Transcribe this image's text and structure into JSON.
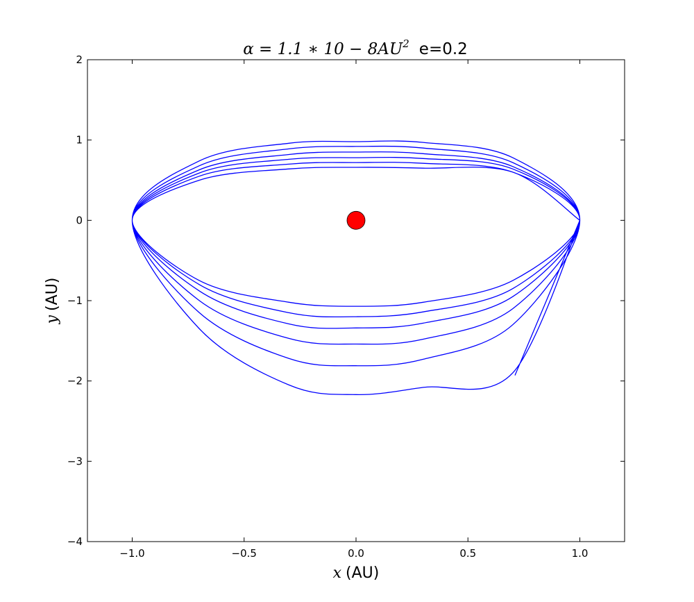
{
  "chart_data": {
    "type": "line",
    "title": {
      "math": "α = 1.1 ∗ 10 − 8AU",
      "math_sup": "2",
      "text": "e=0.2"
    },
    "xlabel": {
      "var": "x",
      "unit": "(AU)"
    },
    "ylabel": {
      "var": "y",
      "unit": "(AU)"
    },
    "xlim": [
      -1.2,
      1.2
    ],
    "ylim": [
      -4,
      2
    ],
    "xticks": [
      -1.0,
      -0.5,
      0.0,
      0.5,
      1.0
    ],
    "xtick_labels": [
      "−1.0",
      "−0.5",
      "0.0",
      "0.5",
      "1.0"
    ],
    "yticks": [
      2,
      1,
      0,
      -1,
      -2,
      -3,
      -4
    ],
    "ytick_labels": [
      "2",
      "1",
      "0",
      "−1",
      "−2",
      "−3",
      "−4"
    ],
    "grid": false,
    "series": [
      {
        "color": "#0000ff",
        "x": [
          1.0,
          0.7,
          0.3,
          0.0,
          -0.3,
          -0.7,
          -1.0,
          -0.7,
          -0.3,
          0.0,
          0.3,
          0.7,
          1.0,
          0.7,
          0.3,
          0.0,
          -0.3,
          -0.7,
          -1.0,
          -0.7,
          -0.3,
          0.0,
          0.3,
          0.7,
          1.0,
          0.7,
          0.3,
          0.0,
          -0.3,
          -0.7,
          -1.0,
          -0.7,
          -0.3,
          0.0,
          0.3,
          0.7,
          1.0,
          0.7,
          0.3,
          0.0,
          -0.3,
          -0.7,
          -1.0,
          -0.7,
          -0.3,
          0.0,
          0.3,
          0.7,
          1.0,
          0.7,
          0.3,
          0.0,
          -0.3,
          -0.7,
          -1.0,
          -0.7,
          -0.3,
          0.0,
          0.3,
          0.7,
          1.0,
          0.7,
          0.3,
          0.0,
          -0.3,
          -0.7,
          -1.0,
          -0.7,
          -0.3,
          0.0,
          0.3,
          0.7,
          1.0,
          0.71
        ],
        "y": [
          0.0,
          0.6,
          0.65,
          0.66,
          0.64,
          0.5,
          0.0,
          -0.75,
          -1.02,
          -1.07,
          -1.02,
          -0.75,
          0.0,
          0.6,
          0.71,
          0.72,
          0.7,
          0.55,
          0.0,
          -0.8,
          -1.15,
          -1.2,
          -1.14,
          -0.85,
          0.0,
          0.64,
          0.77,
          0.78,
          0.76,
          0.59,
          0.0,
          -0.88,
          -1.29,
          -1.34,
          -1.28,
          -0.95,
          0.0,
          0.67,
          0.83,
          0.85,
          0.82,
          0.63,
          0.0,
          -1.0,
          -1.47,
          -1.54,
          -1.48,
          -1.1,
          0.0,
          0.72,
          0.9,
          0.92,
          0.89,
          0.68,
          0.0,
          -1.15,
          -1.72,
          -1.81,
          -1.73,
          -1.3,
          0.0,
          0.78,
          0.97,
          0.98,
          0.96,
          0.74,
          0.0,
          -1.35,
          -2.05,
          -2.17,
          -2.08,
          -1.9,
          0.0,
          -1.93
        ]
      }
    ],
    "central_body": {
      "x": 0.0,
      "y": 0.0,
      "color": "#ff0000"
    }
  }
}
